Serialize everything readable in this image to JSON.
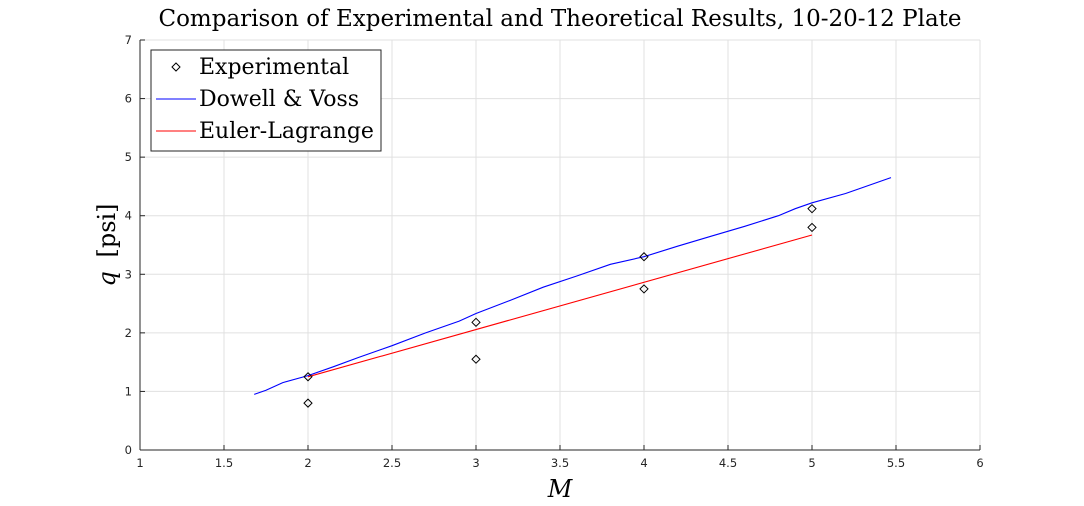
{
  "chart_data": {
    "type": "line",
    "title": "Comparison of Experimental and Theoretical Results, 10-20-12 Plate",
    "xlabel": "M",
    "ylabel_var": "q",
    "ylabel_unit": "[psi]",
    "xlim": [
      1,
      6
    ],
    "ylim": [
      0,
      7
    ],
    "xticks": [
      1,
      1.5,
      2,
      2.5,
      3,
      3.5,
      4,
      4.5,
      5,
      5.5,
      6
    ],
    "xtick_labels": [
      "1",
      "1.5",
      "2",
      "2.5",
      "3",
      "3.5",
      "4",
      "4.5",
      "5",
      "5.5",
      "6"
    ],
    "yticks": [
      0,
      1,
      2,
      3,
      4,
      5,
      6,
      7
    ],
    "ytick_labels": [
      "0",
      "1",
      "2",
      "3",
      "4",
      "5",
      "6",
      "7"
    ],
    "grid": true,
    "legend_position": "top-left",
    "series": [
      {
        "name": "Experimental",
        "style": "markers",
        "marker": "diamond",
        "color": "#000000",
        "x": [
          2,
          2,
          3,
          3,
          4,
          4,
          5,
          5
        ],
        "y": [
          1.25,
          0.8,
          2.18,
          1.55,
          3.3,
          2.75,
          4.12,
          3.8
        ]
      },
      {
        "name": "Dowell & Voss",
        "style": "line",
        "color": "#0000ff",
        "x": [
          1.68,
          1.75,
          1.85,
          2.0,
          2.15,
          2.3,
          2.5,
          2.7,
          2.9,
          3.0,
          3.2,
          3.4,
          3.6,
          3.8,
          4.0,
          4.2,
          4.4,
          4.6,
          4.8,
          4.9,
          5.0,
          5.2,
          5.3,
          5.47
        ],
        "y": [
          0.95,
          1.02,
          1.15,
          1.27,
          1.42,
          1.58,
          1.78,
          2.0,
          2.2,
          2.33,
          2.55,
          2.78,
          2.97,
          3.17,
          3.3,
          3.48,
          3.65,
          3.82,
          4.0,
          4.12,
          4.22,
          4.38,
          4.48,
          4.65
        ]
      },
      {
        "name": "Euler-Lagrange",
        "style": "line",
        "color": "#ff0000",
        "x": [
          2.0,
          5.0
        ],
        "y": [
          1.25,
          3.67
        ]
      }
    ]
  }
}
